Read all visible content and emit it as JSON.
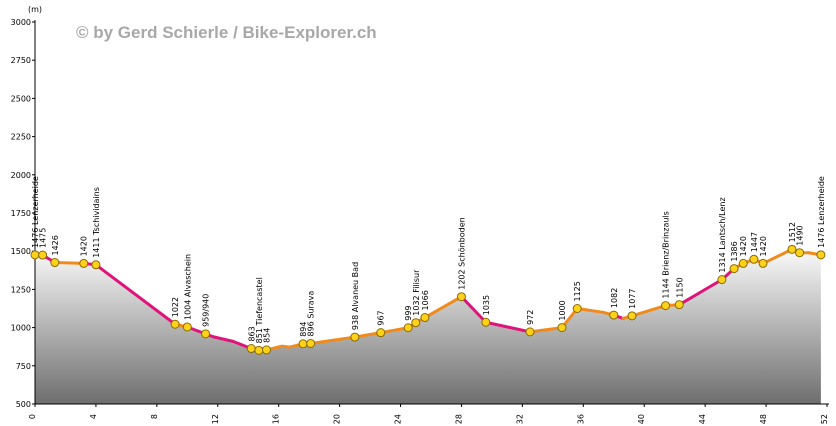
{
  "copyright": "© by Gerd Schierle / Bike-Explorer.ch",
  "colors": {
    "climb": "#e0137a",
    "descent": "#f08a1a",
    "marker_fill": "#ffd21a",
    "marker_stroke": "#8a6a00",
    "area_top": "#fafafa",
    "area_bottom": "#6e6e6e"
  },
  "chart_data": {
    "type": "area",
    "ylabel": "(m)",
    "xlabel": "",
    "xlim": [
      0,
      52
    ],
    "ylim": [
      500,
      3000
    ],
    "grid": false,
    "x_ticks": [
      "0",
      "4",
      "8",
      "12",
      "16",
      "20",
      "24",
      "28",
      "32",
      "36",
      "40",
      "44",
      "48",
      "52"
    ],
    "y_ticks": [
      "500",
      "750",
      "1000",
      "1250",
      "1500",
      "1750",
      "2000",
      "2250",
      "2500",
      "2750",
      "3000"
    ],
    "profile": [
      {
        "x": 0,
        "y": 1476
      },
      {
        "x": 0.5,
        "y": 1475
      },
      {
        "x": 1.3,
        "y": 1426
      },
      {
        "x": 3.2,
        "y": 1420
      },
      {
        "x": 4.0,
        "y": 1411
      },
      {
        "x": 9.2,
        "y": 1022
      },
      {
        "x": 10.0,
        "y": 1004
      },
      {
        "x": 11.2,
        "y": 959
      },
      {
        "x": 11.7,
        "y": 940
      },
      {
        "x": 13.0,
        "y": 910
      },
      {
        "x": 14.2,
        "y": 863
      },
      {
        "x": 14.7,
        "y": 851
      },
      {
        "x": 15.2,
        "y": 854
      },
      {
        "x": 16.2,
        "y": 878
      },
      {
        "x": 16.7,
        "y": 872
      },
      {
        "x": 17.6,
        "y": 894
      },
      {
        "x": 18.1,
        "y": 896
      },
      {
        "x": 21.0,
        "y": 938
      },
      {
        "x": 22.7,
        "y": 967
      },
      {
        "x": 24.5,
        "y": 999
      },
      {
        "x": 25.0,
        "y": 1032
      },
      {
        "x": 25.6,
        "y": 1066
      },
      {
        "x": 28.0,
        "y": 1202
      },
      {
        "x": 29.6,
        "y": 1035
      },
      {
        "x": 32.5,
        "y": 972
      },
      {
        "x": 34.6,
        "y": 1000
      },
      {
        "x": 35.6,
        "y": 1125
      },
      {
        "x": 37.3,
        "y": 1100
      },
      {
        "x": 38.0,
        "y": 1082
      },
      {
        "x": 38.6,
        "y": 1060
      },
      {
        "x": 39.2,
        "y": 1077
      },
      {
        "x": 41.4,
        "y": 1144
      },
      {
        "x": 42.3,
        "y": 1150
      },
      {
        "x": 45.1,
        "y": 1314
      },
      {
        "x": 45.9,
        "y": 1386
      },
      {
        "x": 46.5,
        "y": 1420
      },
      {
        "x": 47.2,
        "y": 1447
      },
      {
        "x": 47.8,
        "y": 1420
      },
      {
        "x": 49.7,
        "y": 1512
      },
      {
        "x": 50.2,
        "y": 1490
      },
      {
        "x": 50.8,
        "y": 1490
      },
      {
        "x": 51.6,
        "y": 1476
      }
    ],
    "segment_colors": [
      "descent",
      "climb",
      "descent",
      "climb",
      "climb",
      "descent",
      "climb",
      "climb",
      "climb",
      "climb",
      "climb",
      "descent",
      "descent",
      "descent",
      "descent",
      "descent",
      "descent",
      "descent",
      "descent",
      "descent",
      "descent",
      "descent",
      "climb",
      "climb",
      "descent",
      "descent",
      "descent",
      "descent",
      "climb",
      "descent",
      "descent",
      "descent",
      "climb",
      "climb",
      "descent",
      "descent",
      "descent",
      "descent",
      "climb",
      "descent",
      "descent"
    ],
    "markers": [
      {
        "x": 0,
        "y": 1476,
        "text": "1476 Lenzerheide"
      },
      {
        "x": 0.5,
        "y": 1475,
        "text": "1475"
      },
      {
        "x": 1.3,
        "y": 1426,
        "text": "1426"
      },
      {
        "x": 3.2,
        "y": 1420,
        "text": "1420"
      },
      {
        "x": 4.0,
        "y": 1411,
        "text": "1411 Tschividains"
      },
      {
        "x": 9.2,
        "y": 1022,
        "text": "1022"
      },
      {
        "x": 10.0,
        "y": 1004,
        "text": "1004 Alvaschein"
      },
      {
        "x": 11.2,
        "y": 959,
        "text": "959/940"
      },
      {
        "x": 14.2,
        "y": 863,
        "text": "863"
      },
      {
        "x": 14.7,
        "y": 851,
        "text": "851 Tiefencastel"
      },
      {
        "x": 15.2,
        "y": 854,
        "text": "854"
      },
      {
        "x": 17.6,
        "y": 894,
        "text": "894"
      },
      {
        "x": 18.1,
        "y": 896,
        "text": "896 Surava"
      },
      {
        "x": 21.0,
        "y": 938,
        "text": "938 Alvaneu Bad"
      },
      {
        "x": 22.7,
        "y": 967,
        "text": "967"
      },
      {
        "x": 24.5,
        "y": 999,
        "text": "999"
      },
      {
        "x": 25.0,
        "y": 1032,
        "text": "1032 Filisur"
      },
      {
        "x": 25.6,
        "y": 1066,
        "text": "1066"
      },
      {
        "x": 28.0,
        "y": 1202,
        "text": "1202 Schönboden"
      },
      {
        "x": 29.6,
        "y": 1035,
        "text": "1035"
      },
      {
        "x": 32.5,
        "y": 972,
        "text": "972"
      },
      {
        "x": 34.6,
        "y": 1000,
        "text": "1000"
      },
      {
        "x": 35.6,
        "y": 1125,
        "text": "1125"
      },
      {
        "x": 38.0,
        "y": 1082,
        "text": "1082"
      },
      {
        "x": 39.2,
        "y": 1077,
        "text": "1077"
      },
      {
        "x": 41.4,
        "y": 1144,
        "text": "1144 Brienz/Brinzauls"
      },
      {
        "x": 42.3,
        "y": 1150,
        "text": "1150"
      },
      {
        "x": 45.1,
        "y": 1314,
        "text": "1314 Lantsch/Lenz"
      },
      {
        "x": 45.9,
        "y": 1386,
        "text": "1386"
      },
      {
        "x": 46.5,
        "y": 1420,
        "text": "1420"
      },
      {
        "x": 47.2,
        "y": 1447,
        "text": "1447"
      },
      {
        "x": 47.8,
        "y": 1420,
        "text": "1420"
      },
      {
        "x": 49.7,
        "y": 1512,
        "text": "1512"
      },
      {
        "x": 50.2,
        "y": 1490,
        "text": "1490"
      },
      {
        "x": 51.6,
        "y": 1476,
        "text": "1476 Lenzerheide"
      }
    ]
  }
}
